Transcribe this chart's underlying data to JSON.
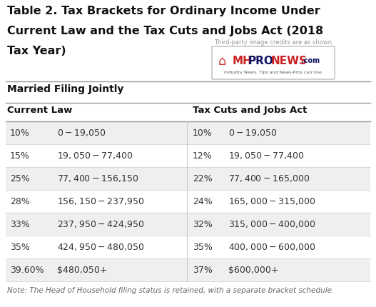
{
  "title": "Table 2. Tax Brackets for Ordinary Income Under\nCurrent Law and the Tax Cuts and Jobs Act (2018\nTax Year)",
  "subtitle": "Married Filing Jointly",
  "col_header_left": "Current Law",
  "col_header_right": "Tax Cuts and Jobs Act",
  "current_law": [
    [
      "10%",
      "$0-$19,050"
    ],
    [
      "15%",
      "$19,050-$77,400"
    ],
    [
      "25%",
      "$77,400-$156,150"
    ],
    [
      "28%",
      "$156,150-$237,950"
    ],
    [
      "33%",
      "$237,950-$424,950"
    ],
    [
      "35%",
      "$424,950-$480,050"
    ],
    [
      "39.60%",
      "$480,050+"
    ]
  ],
  "tcja": [
    [
      "10%",
      "$0-$19,050"
    ],
    [
      "12%",
      "$19,050-$77,400"
    ],
    [
      "22%",
      "$77,400-$165,000"
    ],
    [
      "24%",
      "$165,000-$315,000"
    ],
    [
      "32%",
      "$315,000-$400,000"
    ],
    [
      "35%",
      "$400,000-$600,000"
    ],
    [
      "37%",
      "$600,000+"
    ]
  ],
  "note": "Note: The Head of Household filing status is retained, with a separate bracket schedule.",
  "bg_color": "#ffffff",
  "row_alt_color": "#efefef",
  "row_white_color": "#ffffff",
  "title_color": "#111111",
  "text_color": "#333333",
  "note_color": "#666666",
  "line_color": "#bbbbbb",
  "title_fontsize": 11.5,
  "header_fontsize": 9.5,
  "body_fontsize": 9.0,
  "note_fontsize": 7.5,
  "subtitle_fontsize": 10.0,
  "watermark_text": "Third-party image credits are as shown.",
  "logo_tagline": "Industry News, Tips and News-Pros can Use."
}
